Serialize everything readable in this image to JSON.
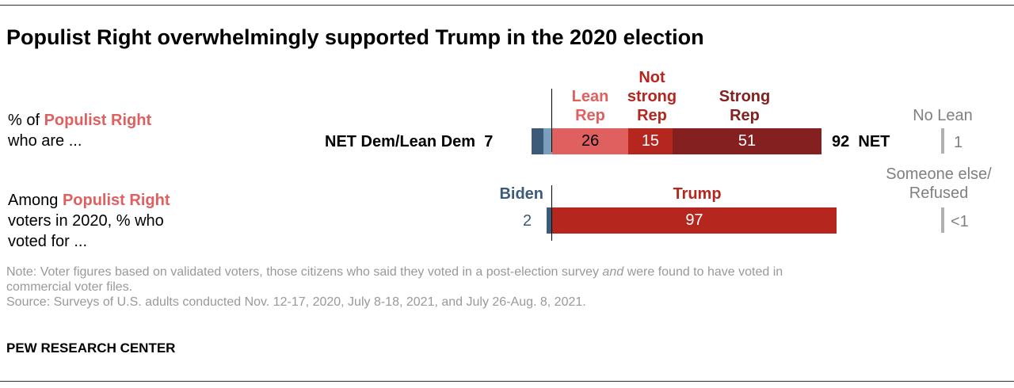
{
  "title": "Populist Right overwhelmingly supported Trump in the 2020 election",
  "row1": {
    "pre": "% of ",
    "group": "Populist Right",
    "post": "who are ..."
  },
  "row2": {
    "pre": "Among ",
    "group": "Populist Right",
    "post1": "voters in 2020, % who",
    "post2": "voted for ..."
  },
  "chart_data": [
    {
      "type": "bar",
      "orientation": "horizontal",
      "stacked": true,
      "series": [
        {
          "name": "Lean Rep",
          "value": 26,
          "color": "#e06060"
        },
        {
          "name": "Not strong Rep",
          "value": 15,
          "color": "#b5261e"
        },
        {
          "name": "Strong Rep",
          "value": 51,
          "color": "#842020"
        }
      ],
      "dem_segments": [
        {
          "value": 4,
          "color": "#3d5a7a"
        },
        {
          "value": 3,
          "color": "#7a9fbc"
        }
      ],
      "net_dem_label": "NET Dem/Lean Dem",
      "net_dem_value": "7",
      "net_rep_value": "92",
      "net_rep_label": "NET",
      "no_lean_label": "No Lean",
      "no_lean_value": "1"
    },
    {
      "type": "bar",
      "orientation": "horizontal",
      "series": [
        {
          "name": "Biden",
          "value": 2,
          "color": "#3d5a7a"
        },
        {
          "name": "Trump",
          "value": 97,
          "color": "#b5261e"
        }
      ],
      "biden_value": "2",
      "trump_value": "97",
      "other_label1": "Someone else/",
      "other_label2": "Refused",
      "other_value": "<1"
    }
  ],
  "headers": {
    "lean1": "Lean",
    "lean2": "Rep",
    "ns1": "Not",
    "ns2": "strong",
    "ns3": "Rep",
    "s1": "Strong",
    "s2": "Rep"
  },
  "note": {
    "a": "Note: Voter figures based on validated voters, those citizens who said they voted in a post-election survey ",
    "em": "and",
    "b": " were found to have voted in",
    "c": "commercial voter files.",
    "source": "Source: Surveys of U.S. adults conducted Nov. 12-17, 2020, July 8-18, 2021, and July 26-Aug. 8, 2021."
  },
  "footer": "PEW RESEARCH CENTER"
}
